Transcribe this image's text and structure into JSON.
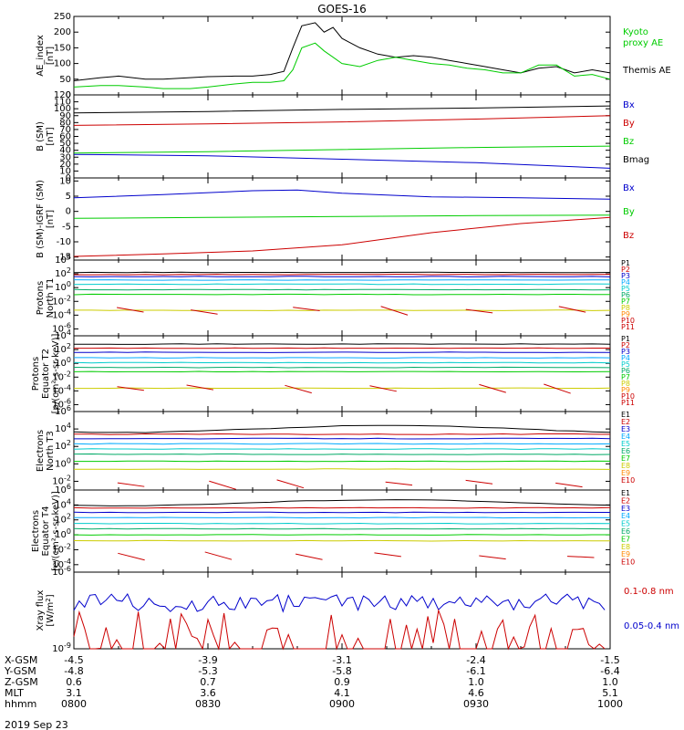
{
  "title": "GOES-16",
  "date": "2019 Sep 23",
  "footer": {
    "rows": [
      {
        "label": "X-GSM",
        "values": [
          "-4.5",
          "-3.9",
          "-3.1",
          "-2.4",
          "-1.5"
        ]
      },
      {
        "label": "Y-GSM",
        "values": [
          "-4.8",
          "-5.3",
          "-5.8",
          "-6.1",
          "-6.4"
        ]
      },
      {
        "label": "Z-GSM",
        "values": [
          "0.6",
          "0.7",
          "0.9",
          "1.0",
          "1.0"
        ]
      },
      {
        "label": "MLT",
        "values": [
          "3.1",
          "3.6",
          "4.1",
          "4.6",
          "5.1"
        ]
      },
      {
        "label": "hhmm",
        "values": [
          "0800",
          "0830",
          "0900",
          "0930",
          "1000"
        ]
      }
    ]
  },
  "colors": {
    "black": "#000000",
    "blue": "#0000cc",
    "green": "#00cc00",
    "red": "#cc0000",
    "cyan": "#00cccc",
    "yellow": "#cccc00",
    "orange": "#ff8800",
    "purple": "#8800cc"
  },
  "chart_data": [
    {
      "type": "line",
      "ylabel": [
        "AE_index",
        "[nT]"
      ],
      "ylim": [
        0,
        250
      ],
      "yticks": [
        "0",
        "50",
        "100",
        "150",
        "200",
        "250"
      ],
      "series": [
        {
          "name": "Themis AE",
          "color": "#000000",
          "x": [
            0,
            6,
            10,
            16,
            20,
            26,
            30,
            36,
            40,
            44,
            47,
            49,
            51,
            54,
            56,
            58,
            60,
            64,
            68,
            72,
            76,
            80,
            84,
            88,
            92,
            96,
            100,
            104,
            108,
            112,
            116,
            120
          ],
          "values": [
            45,
            55,
            60,
            50,
            50,
            55,
            58,
            60,
            60,
            65,
            75,
            150,
            220,
            230,
            200,
            215,
            180,
            150,
            130,
            120,
            125,
            120,
            110,
            100,
            90,
            80,
            70,
            85,
            90,
            70,
            80,
            70
          ]
        },
        {
          "name": "Kyoto\nproxy AE",
          "color": "#00cc00",
          "x": [
            0,
            6,
            10,
            16,
            20,
            26,
            30,
            36,
            40,
            44,
            47,
            49,
            51,
            54,
            56,
            58,
            60,
            64,
            68,
            72,
            76,
            80,
            84,
            88,
            92,
            96,
            100,
            104,
            108,
            112,
            116,
            120
          ],
          "values": [
            25,
            30,
            30,
            25,
            20,
            20,
            25,
            35,
            40,
            40,
            45,
            80,
            150,
            165,
            140,
            120,
            100,
            90,
            110,
            120,
            110,
            100,
            95,
            85,
            80,
            70,
            70,
            95,
            95,
            60,
            65,
            50
          ]
        }
      ]
    },
    {
      "type": "line",
      "ylabel": [
        "B (SM)",
        "[nT]"
      ],
      "ylim": [
        0,
        120
      ],
      "yticks": [
        "0",
        "10",
        "20",
        "30",
        "40",
        "50",
        "60",
        "70",
        "80",
        "90",
        "100",
        "110",
        "120"
      ],
      "series": [
        {
          "name": "Bx",
          "color": "#0000cc",
          "x": [
            0,
            30,
            60,
            90,
            120
          ],
          "values": [
            34,
            32,
            27,
            22,
            14
          ]
        },
        {
          "name": "By",
          "color": "#cc0000",
          "x": [
            0,
            30,
            60,
            90,
            120
          ],
          "values": [
            76,
            78,
            81,
            85,
            90
          ]
        },
        {
          "name": "Bz",
          "color": "#00cc00",
          "x": [
            0,
            30,
            60,
            90,
            120
          ],
          "values": [
            36,
            38,
            41,
            44,
            46
          ]
        },
        {
          "name": "Bmag",
          "color": "#000000",
          "x": [
            0,
            30,
            60,
            90,
            120
          ],
          "values": [
            94,
            96,
            99,
            101,
            104
          ]
        }
      ]
    },
    {
      "type": "line",
      "ylabel": [
        "B (SM)-IGRF (SM)",
        "[nT]"
      ],
      "ylim": [
        -16,
        11
      ],
      "yticks": [
        "-15",
        "-10",
        "-5",
        "0",
        "5",
        "10"
      ],
      "series": [
        {
          "name": "Bx",
          "color": "#0000cc",
          "x": [
            0,
            20,
            40,
            50,
            60,
            80,
            100,
            120
          ],
          "values": [
            4.5,
            5.5,
            6.8,
            7.0,
            6.0,
            4.8,
            4.5,
            4.0
          ]
        },
        {
          "name": "By",
          "color": "#00cc00",
          "x": [
            0,
            30,
            60,
            90,
            120
          ],
          "values": [
            -2.3,
            -2.0,
            -1.7,
            -1.4,
            -1.2
          ]
        },
        {
          "name": "Bz",
          "color": "#cc0000",
          "x": [
            0,
            20,
            40,
            60,
            80,
            100,
            120
          ],
          "values": [
            -14.8,
            -14,
            -13,
            -11,
            -7,
            -4,
            -2
          ]
        }
      ]
    },
    {
      "type": "line",
      "log": true,
      "ylabel": [
        "Protons",
        "North T1"
      ],
      "ylim_exp": [
        -7,
        4
      ],
      "yticks": [
        "10^4",
        "10^2",
        "10^0",
        "10^-2",
        "10^-4",
        "10^-6"
      ],
      "legend": [
        "P1",
        "P2",
        "P3",
        "P4",
        "P5",
        "P6",
        "P7",
        "P8",
        "P9",
        "P10",
        "P11"
      ]
    },
    {
      "type": "line",
      "log": true,
      "ylabel": [
        "Protons",
        "Equator T2"
      ],
      "ylim_exp": [
        -7,
        4
      ],
      "yticks": [
        "10^4",
        "10^2",
        "10^0",
        "10^-2",
        "10^-4",
        "10^-6"
      ],
      "legend": [
        "P1",
        "P2",
        "P3",
        "P4",
        "P5",
        "P6",
        "P7",
        "P8",
        "P9",
        "P10",
        "P11"
      ]
    },
    {
      "type": "line",
      "log": true,
      "ylabel": [
        "Electrons",
        "North T3"
      ],
      "ylim_exp": [
        -3,
        6
      ],
      "yticks": [
        "10^6",
        "10^4",
        "10^2",
        "10^0",
        "10^-2"
      ],
      "legend": [
        "E1",
        "E2",
        "E3",
        "E4",
        "E5",
        "E6",
        "E7",
        "E8",
        "E9",
        "E10"
      ]
    },
    {
      "type": "line",
      "log": true,
      "ylabel": [
        "Electrons",
        "Equator T4"
      ],
      "ylim_exp": [
        -5,
        6
      ],
      "yticks": [
        "10^6",
        "10^4",
        "10^2",
        "10^0",
        "10^-2",
        "10^-4"
      ],
      "legend": [
        "E1",
        "E2",
        "E3",
        "E4",
        "E5",
        "E6",
        "E7",
        "E8",
        "E9",
        "E10"
      ]
    },
    {
      "type": "line",
      "log": true,
      "ylabel": [
        "Xray flux",
        "[W/m^2]"
      ],
      "ylim_exp": [
        -9,
        -6
      ],
      "yticks": [
        "10^-6",
        "10^-9"
      ],
      "legend": [
        "0.1-0.8 nm",
        "0.05-0.4 nm"
      ]
    }
  ],
  "shared_labels": {
    "protons_units": "[p/(cm²-s-sr-keV)]",
    "electrons_units": "[e/(cm²-s-sr-keV)]"
  }
}
